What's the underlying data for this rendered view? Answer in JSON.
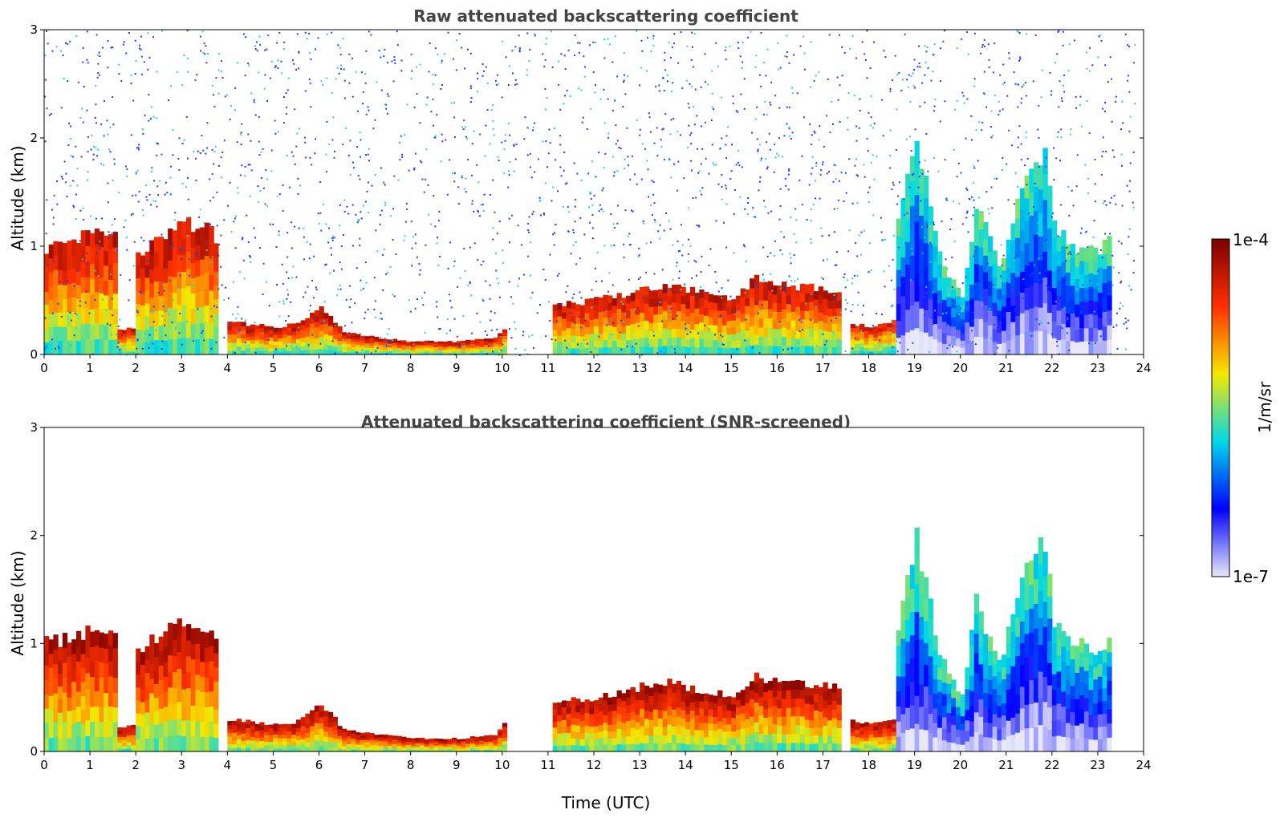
{
  "figure": {
    "colormap_stops": [
      "#e8e8f8",
      "#0000ff",
      "#00d8e8",
      "#f5e800",
      "#ff3000",
      "#7a0000"
    ],
    "colorbar": {
      "top_label": "1e-4",
      "bottom_label": "1e-7",
      "unit_label": "1/m/sr"
    }
  },
  "chart_data": [
    {
      "type": "heatmap",
      "title": "Raw attenuated backscattering coefficient",
      "xlabel": "",
      "ylabel": "Altitude (km)",
      "xlim": [
        0,
        24
      ],
      "ylim": [
        0,
        3
      ],
      "x_ticks": [
        "0",
        "1",
        "2",
        "3",
        "4",
        "5",
        "6",
        "7",
        "8",
        "9",
        "10",
        "11",
        "12",
        "13",
        "14",
        "15",
        "16",
        "17",
        "18",
        "19",
        "20",
        "21",
        "22",
        "23",
        "24"
      ],
      "y_ticks": [
        "0",
        "1",
        "2",
        "3"
      ],
      "colorscale": "log",
      "zlim": [
        "1e-7",
        "1e-4"
      ],
      "unit": "1/m/sr",
      "layers": [
        {
          "x": [
            0,
            0.5,
            1,
            1.5,
            1.6,
            1.9,
            2,
            2.5,
            3,
            3.5,
            3.8
          ],
          "top": [
            1.0,
            1.05,
            1.1,
            1.1,
            0.22,
            0.25,
            0.95,
            1.1,
            1.2,
            1.15,
            1.05
          ],
          "level": 4.9
        },
        {
          "x": [
            4,
            5,
            5.5,
            6,
            6.5,
            7,
            8,
            9,
            9.8,
            10.0
          ],
          "top": [
            0.3,
            0.25,
            0.28,
            0.45,
            0.2,
            0.17,
            0.12,
            0.12,
            0.15,
            0.25
          ],
          "level": 4.9
        },
        {
          "x": [
            11,
            12,
            12.5,
            13,
            13.5,
            14,
            14.5,
            15,
            15.5,
            16,
            16.5,
            17,
            17.3
          ],
          "top": [
            0.45,
            0.5,
            0.55,
            0.6,
            0.65,
            0.6,
            0.55,
            0.5,
            0.7,
            0.65,
            0.62,
            0.6,
            0.6
          ],
          "level": 4.9
        },
        {
          "x": [
            17.5,
            18,
            18.5
          ],
          "top": [
            0.3,
            0.25,
            0.3
          ],
          "level": 4.8
        },
        {
          "x": [
            18.5,
            19,
            19.5,
            20,
            20.3,
            20.8,
            21.5,
            21.8,
            22,
            22.5,
            23,
            23.3
          ],
          "top": [
            1.0,
            2.0,
            0.9,
            0.5,
            1.4,
            0.8,
            1.8,
            1.9,
            1.2,
            1.0,
            0.95,
            1.1
          ],
          "level": 3.6
        }
      ],
      "noise_top_km": 3.0
    },
    {
      "type": "heatmap",
      "title": "Attenuated backscattering coefficient (SNR-screened)",
      "xlabel": "Time (UTC)",
      "ylabel": "Altitude (km)",
      "xlim": [
        0,
        24
      ],
      "ylim": [
        0,
        3
      ],
      "x_ticks": [
        "0",
        "1",
        "2",
        "3",
        "4",
        "5",
        "6",
        "7",
        "8",
        "9",
        "10",
        "11",
        "12",
        "13",
        "14",
        "15",
        "16",
        "17",
        "18",
        "19",
        "20",
        "21",
        "22",
        "23",
        "24"
      ],
      "y_ticks": [
        "0",
        "1",
        "2",
        "3"
      ],
      "colorscale": "log",
      "zlim": [
        "1e-7",
        "1e-4"
      ],
      "unit": "1/m/sr",
      "layers": [
        {
          "x": [
            0,
            0.5,
            1,
            1.5,
            1.6,
            1.9,
            2,
            2.5,
            3,
            3.5,
            3.8
          ],
          "top": [
            1.0,
            1.05,
            1.1,
            1.1,
            0.22,
            0.25,
            0.95,
            1.1,
            1.2,
            1.15,
            1.05
          ],
          "level": 5.0
        },
        {
          "x": [
            4,
            5,
            5.5,
            6,
            6.5,
            7,
            8,
            9,
            9.8,
            10.0
          ],
          "top": [
            0.3,
            0.25,
            0.28,
            0.45,
            0.2,
            0.17,
            0.12,
            0.12,
            0.15,
            0.25
          ],
          "level": 5.0
        },
        {
          "x": [
            11,
            12,
            12.5,
            13,
            13.5,
            14,
            14.5,
            15,
            15.5,
            16,
            16.5,
            17,
            17.3
          ],
          "top": [
            0.45,
            0.5,
            0.55,
            0.6,
            0.65,
            0.6,
            0.55,
            0.5,
            0.7,
            0.65,
            0.62,
            0.6,
            0.6
          ],
          "level": 5.0
        },
        {
          "x": [
            17.5,
            18,
            18.5
          ],
          "top": [
            0.3,
            0.25,
            0.3
          ],
          "level": 5.0
        },
        {
          "x": [
            18.5,
            19,
            19.5,
            20,
            20.3,
            20.8,
            21.5,
            21.8,
            22,
            22.5,
            23,
            23.3
          ],
          "top": [
            1.0,
            2.0,
            0.9,
            0.5,
            1.4,
            0.8,
            1.8,
            1.9,
            1.2,
            1.0,
            0.95,
            1.1
          ],
          "level": 3.6
        }
      ],
      "noise_top_km": 0
    }
  ]
}
